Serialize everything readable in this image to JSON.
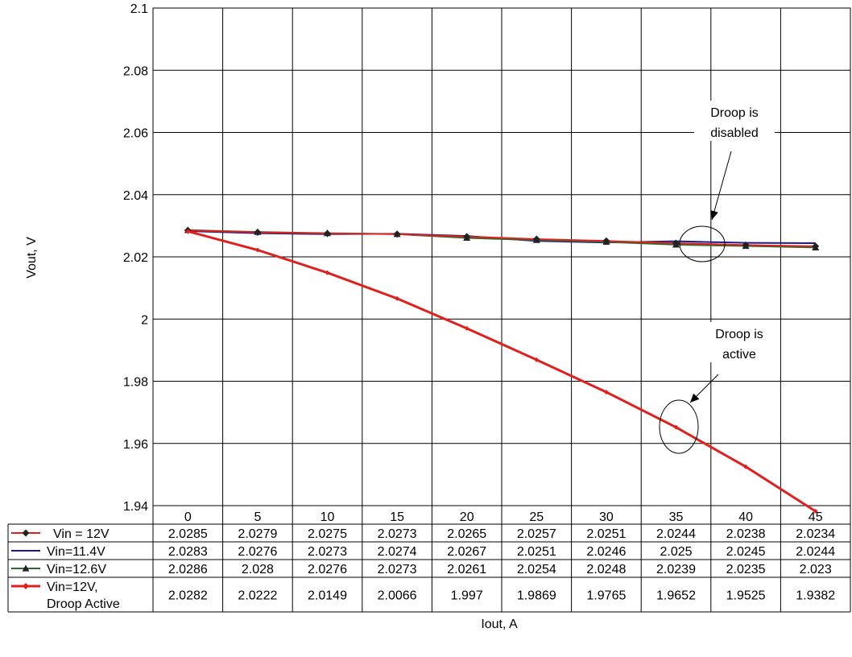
{
  "chart_data": {
    "type": "line",
    "title": "",
    "xlabel": "Iout, A",
    "ylabel": "Vout, V",
    "x": [
      0,
      5,
      10,
      15,
      20,
      25,
      30,
      35,
      40,
      45
    ],
    "x_tick_labels": [
      "0",
      "5",
      "10",
      "15",
      "20",
      "25",
      "30",
      "35",
      "40",
      "45"
    ],
    "y_tick_labels": [
      "2.1",
      "2.08",
      "2.06",
      "2.04",
      "2.02",
      "2",
      "1.98",
      "1.96",
      "1.94"
    ],
    "xlim": [
      -2.5,
      47.5
    ],
    "ylim": [
      1.94,
      2.1
    ],
    "grid": true,
    "legend_placement": "data table below plot",
    "series": [
      {
        "name": "Vin = 12V",
        "color": "#000000",
        "line_color": "#e0201c",
        "marker": "diamond",
        "values": [
          2.0285,
          2.0279,
          2.0275,
          2.0273,
          2.0265,
          2.0257,
          2.0251,
          2.0244,
          2.0238,
          2.0234
        ],
        "cells": [
          "2.0285",
          "2.0279",
          "2.0275",
          "2.0273",
          "2.0265",
          "2.0257",
          "2.0251",
          "2.0244",
          "2.0238",
          "2.0234"
        ]
      },
      {
        "name": "Vin=11.4V",
        "color": "#1a1a8c",
        "line_color": "#1a1a8c",
        "marker": "none",
        "values": [
          2.0283,
          2.0276,
          2.0273,
          2.0274,
          2.0267,
          2.0251,
          2.0246,
          2.025,
          2.0245,
          2.0244
        ],
        "cells": [
          "2.0283",
          "2.0276",
          "2.0273",
          "2.0274",
          "2.0267",
          "2.0251",
          "2.0246",
          "2.025",
          "2.0245",
          "2.0244"
        ]
      },
      {
        "name": "Vin=12.6V",
        "color": "#1a4d1a",
        "line_color": "#2e6b2e",
        "marker": "triangle",
        "values": [
          2.0286,
          2.028,
          2.0276,
          2.0273,
          2.0261,
          2.0254,
          2.0248,
          2.0239,
          2.0235,
          2.023
        ],
        "cells": [
          "2.0286",
          "2.028",
          "2.0276",
          "2.0273",
          "2.0261",
          "2.0254",
          "2.0248",
          "2.0239",
          "2.0235",
          "2.023"
        ]
      },
      {
        "name": "Vin=12V,\nDroop Active",
        "name_lines": [
          "Vin=12V,",
          "Droop Active"
        ],
        "color": "#e0201c",
        "line_color": "#e0201c",
        "marker": "diamond",
        "values": [
          2.0282,
          2.0222,
          2.0149,
          2.0066,
          1.997,
          1.9869,
          1.9765,
          1.9652,
          1.9525,
          1.9382
        ],
        "cells": [
          "2.0282",
          "2.0222",
          "2.0149",
          "2.0066",
          "1.997",
          "1.9869",
          "1.9765",
          "1.9652",
          "1.9525",
          "1.9382"
        ]
      }
    ],
    "annotations": [
      {
        "lines": [
          "Droop is",
          "disabled"
        ],
        "target_x": 36,
        "target_y": 2.0245
      },
      {
        "lines": [
          "Droop is",
          "active"
        ],
        "target_x": 34.5,
        "target_y": 1.9655
      }
    ]
  }
}
